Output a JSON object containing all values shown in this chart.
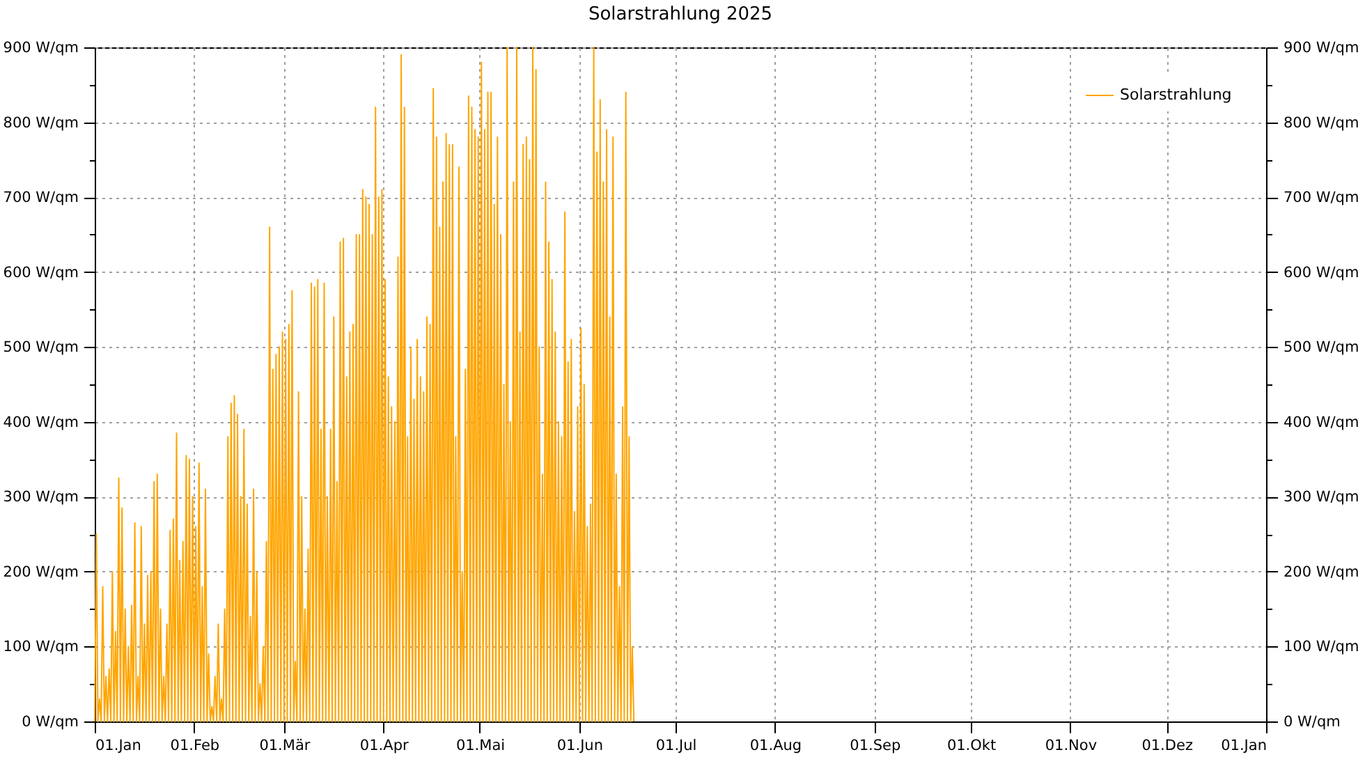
{
  "chart_data": {
    "type": "line",
    "title": "Solarstrahlung 2025",
    "legend": "top right",
    "grid": true,
    "xlim": [
      "2025-01-01",
      "2026-01-01"
    ],
    "xticks": [
      {
        "value": "2025-01-01",
        "label": "01.Jan"
      },
      {
        "value": "2025-02-01",
        "label": "01.Feb"
      },
      {
        "value": "2025-03-01",
        "label": "01.Mär"
      },
      {
        "value": "2025-04-01",
        "label": "01.Apr"
      },
      {
        "value": "2025-05-01",
        "label": "01.Mai"
      },
      {
        "value": "2025-06-01",
        "label": "01.Jun"
      },
      {
        "value": "2025-07-01",
        "label": "01.Jul"
      },
      {
        "value": "2025-08-01",
        "label": "01.Aug"
      },
      {
        "value": "2025-09-01",
        "label": "01.Sep"
      },
      {
        "value": "2025-10-01",
        "label": "01.Okt"
      },
      {
        "value": "2025-11-01",
        "label": "01.Nov"
      },
      {
        "value": "2025-12-01",
        "label": "01.Dez"
      },
      {
        "value": "2026-01-01",
        "label": "01.Jan"
      }
    ],
    "ylim": [
      0,
      900
    ],
    "yticks": [
      {
        "value": 0,
        "label": "0 W/qm"
      },
      {
        "value": 50,
        "label": null
      },
      {
        "value": 100,
        "label": "100 W/qm"
      },
      {
        "value": 150,
        "label": null
      },
      {
        "value": 200,
        "label": "200 W/qm"
      },
      {
        "value": 250,
        "label": null
      },
      {
        "value": 300,
        "label": "300 W/qm"
      },
      {
        "value": 350,
        "label": null
      },
      {
        "value": 400,
        "label": "400 W/qm"
      },
      {
        "value": 450,
        "label": null
      },
      {
        "value": 500,
        "label": "500 W/qm"
      },
      {
        "value": 550,
        "label": null
      },
      {
        "value": 600,
        "label": "600 W/qm"
      },
      {
        "value": 650,
        "label": null
      },
      {
        "value": 700,
        "label": "700 W/qm"
      },
      {
        "value": 750,
        "label": null
      },
      {
        "value": 800,
        "label": "800 W/qm"
      },
      {
        "value": 850,
        "label": null
      },
      {
        "value": 900,
        "label": "900 W/qm"
      }
    ],
    "y2lim": [
      0,
      900
    ],
    "y2ticks": [
      {
        "value": 0,
        "label": "0 W/qm"
      },
      {
        "value": 50,
        "label": null
      },
      {
        "value": 100,
        "label": "100 W/qm"
      },
      {
        "value": 150,
        "label": null
      },
      {
        "value": 200,
        "label": "200 W/qm"
      },
      {
        "value": 250,
        "label": null
      },
      {
        "value": 300,
        "label": "300 W/qm"
      },
      {
        "value": 350,
        "label": null
      },
      {
        "value": 400,
        "label": "400 W/qm"
      },
      {
        "value": 450,
        "label": null
      },
      {
        "value": 500,
        "label": "500 W/qm"
      },
      {
        "value": 550,
        "label": null
      },
      {
        "value": 600,
        "label": "600 W/qm"
      },
      {
        "value": 650,
        "label": null
      },
      {
        "value": 700,
        "label": "700 W/qm"
      },
      {
        "value": 750,
        "label": null
      },
      {
        "value": 800,
        "label": "800 W/qm"
      },
      {
        "value": 850,
        "label": null
      },
      {
        "value": 900,
        "label": "900 W/qm"
      }
    ],
    "x": [
      "2025-01-01T00:00",
      "2025-01-01T12:00",
      "2025-01-02T00:00",
      "2025-01-02T12:00",
      "2025-01-03T00:00",
      "2025-01-03T12:00",
      "2025-01-04T00:00",
      "2025-01-04T12:00",
      "2025-01-05T00:00",
      "2025-01-05T12:00",
      "2025-01-06T00:00",
      "2025-01-06T12:00",
      "2025-01-07T00:00",
      "2025-01-07T12:00",
      "2025-01-08T00:00",
      "2025-01-08T12:00",
      "2025-01-09T00:00",
      "2025-01-09T12:00",
      "2025-01-10T00:00",
      "2025-01-10T12:00",
      "2025-01-11T00:00",
      "2025-01-11T12:00",
      "2025-01-12T00:00",
      "2025-01-12T12:00",
      "2025-01-13T00:00",
      "2025-01-13T12:00",
      "2025-01-14T00:00",
      "2025-01-14T12:00",
      "2025-01-15T00:00",
      "2025-01-15T12:00",
      "2025-01-16T00:00",
      "2025-01-16T12:00",
      "2025-01-17T00:00",
      "2025-01-17T12:00",
      "2025-01-18T00:00",
      "2025-01-18T12:00",
      "2025-01-19T00:00",
      "2025-01-19T12:00",
      "2025-01-20T00:00",
      "2025-01-20T12:00",
      "2025-01-21T00:00",
      "2025-01-21T12:00",
      "2025-01-22T00:00",
      "2025-01-22T12:00",
      "2025-01-23T00:00",
      "2025-01-23T12:00",
      "2025-01-24T00:00",
      "2025-01-24T12:00",
      "2025-01-25T00:00",
      "2025-01-25T12:00",
      "2025-01-26T00:00",
      "2025-01-26T12:00",
      "2025-01-27T00:00",
      "2025-01-27T12:00",
      "2025-01-28T00:00",
      "2025-01-28T12:00",
      "2025-01-29T00:00",
      "2025-01-29T12:00",
      "2025-01-30T00:00",
      "2025-01-30T12:00",
      "2025-01-31T00:00",
      "2025-01-31T12:00",
      "2025-02-01T00:00",
      "2025-02-01T12:00",
      "2025-02-02T00:00",
      "2025-02-02T12:00",
      "2025-02-03T00:00",
      "2025-02-03T12:00",
      "2025-02-04T00:00",
      "2025-02-04T12:00",
      "2025-02-05T00:00",
      "2025-02-05T12:00",
      "2025-02-06T00:00",
      "2025-02-06T12:00",
      "2025-02-07T00:00",
      "2025-02-07T12:00",
      "2025-02-08T00:00",
      "2025-02-08T12:00",
      "2025-02-09T00:00",
      "2025-02-09T12:00",
      "2025-02-10T00:00",
      "2025-02-10T12:00",
      "2025-02-11T00:00",
      "2025-02-11T12:00",
      "2025-02-12T00:00",
      "2025-02-12T12:00",
      "2025-02-13T00:00",
      "2025-02-13T12:00",
      "2025-02-14T00:00",
      "2025-02-14T12:00",
      "2025-02-15T00:00",
      "2025-02-15T12:00",
      "2025-02-16T00:00",
      "2025-02-16T12:00",
      "2025-02-17T00:00",
      "2025-02-17T12:00",
      "2025-02-18T00:00",
      "2025-02-18T12:00",
      "2025-02-19T00:00",
      "2025-02-19T12:00",
      "2025-02-20T00:00",
      "2025-02-20T12:00",
      "2025-02-21T00:00",
      "2025-02-21T12:00",
      "2025-02-22T00:00",
      "2025-02-22T12:00",
      "2025-02-23T00:00",
      "2025-02-23T12:00",
      "2025-02-24T00:00",
      "2025-02-24T12:00",
      "2025-02-25T00:00",
      "2025-02-25T12:00",
      "2025-02-26T00:00",
      "2025-02-26T12:00",
      "2025-02-27T00:00",
      "2025-02-27T12:00",
      "2025-02-28T00:00",
      "2025-02-28T12:00",
      "2025-03-01T00:00",
      "2025-03-01T12:00",
      "2025-03-02T00:00",
      "2025-03-02T12:00",
      "2025-03-03T00:00",
      "2025-03-03T12:00",
      "2025-03-04T00:00",
      "2025-03-04T12:00",
      "2025-03-05T00:00",
      "2025-03-05T12:00",
      "2025-03-06T00:00",
      "2025-03-06T12:00",
      "2025-03-07T00:00",
      "2025-03-07T12:00",
      "2025-03-08T00:00",
      "2025-03-08T12:00",
      "2025-03-09T00:00",
      "2025-03-09T12:00",
      "2025-03-10T00:00",
      "2025-03-10T12:00",
      "2025-03-11T00:00",
      "2025-03-11T12:00",
      "2025-03-12T00:00",
      "2025-03-12T12:00",
      "2025-03-13T00:00",
      "2025-03-13T12:00",
      "2025-03-14T00:00",
      "2025-03-14T12:00",
      "2025-03-15T00:00",
      "2025-03-15T12:00",
      "2025-03-16T00:00",
      "2025-03-16T12:00",
      "2025-03-17T00:00",
      "2025-03-17T12:00",
      "2025-03-18T00:00",
      "2025-03-18T12:00",
      "2025-03-19T00:00",
      "2025-03-19T12:00",
      "2025-03-20T00:00",
      "2025-03-20T12:00",
      "2025-03-21T00:00",
      "2025-03-21T12:00",
      "2025-03-22T00:00",
      "2025-03-22T12:00",
      "2025-03-23T00:00",
      "2025-03-23T12:00",
      "2025-03-24T00:00",
      "2025-03-24T12:00",
      "2025-03-25T00:00",
      "2025-03-25T12:00",
      "2025-03-26T00:00",
      "2025-03-26T12:00",
      "2025-03-27T00:00",
      "2025-03-27T12:00",
      "2025-03-28T00:00",
      "2025-03-28T12:00",
      "2025-03-29T00:00",
      "2025-03-29T12:00",
      "2025-03-30T00:00",
      "2025-03-30T12:00",
      "2025-03-31T00:00",
      "2025-03-31T12:00",
      "2025-04-01T00:00",
      "2025-04-01T12:00",
      "2025-04-02T00:00",
      "2025-04-02T12:00",
      "2025-04-03T00:00",
      "2025-04-03T12:00",
      "2025-04-04T00:00",
      "2025-04-04T12:00",
      "2025-04-05T00:00",
      "2025-04-05T12:00",
      "2025-04-06T00:00",
      "2025-04-06T12:00",
      "2025-04-07T00:00",
      "2025-04-07T12:00",
      "2025-04-08T00:00",
      "2025-04-08T12:00",
      "2025-04-09T00:00",
      "2025-04-09T12:00",
      "2025-04-10T00:00",
      "2025-04-10T12:00",
      "2025-04-11T00:00",
      "2025-04-11T12:00",
      "2025-04-12T00:00",
      "2025-04-12T12:00",
      "2025-04-13T00:00",
      "2025-04-13T12:00",
      "2025-04-14T00:00",
      "2025-04-14T12:00",
      "2025-04-15T00:00",
      "2025-04-15T12:00",
      "2025-04-16T00:00",
      "2025-04-16T12:00",
      "2025-04-17T00:00",
      "2025-04-17T12:00",
      "2025-04-18T00:00",
      "2025-04-18T12:00",
      "2025-04-19T00:00",
      "2025-04-19T12:00",
      "2025-04-20T00:00",
      "2025-04-20T12:00",
      "2025-04-21T00:00",
      "2025-04-21T12:00",
      "2025-04-22T00:00",
      "2025-04-22T12:00",
      "2025-04-23T00:00",
      "2025-04-23T12:00",
      "2025-04-24T00:00",
      "2025-04-24T12:00",
      "2025-04-25T00:00",
      "2025-04-25T12:00",
      "2025-04-26T00:00",
      "2025-04-26T12:00",
      "2025-04-27T00:00",
      "2025-04-27T12:00",
      "2025-04-28T00:00",
      "2025-04-28T12:00",
      "2025-04-29T00:00",
      "2025-04-29T12:00",
      "2025-04-30T00:00",
      "2025-04-30T12:00",
      "2025-05-01T00:00",
      "2025-05-01T12:00",
      "2025-05-02T00:00",
      "2025-05-02T12:00",
      "2025-05-03T00:00",
      "2025-05-03T12:00",
      "2025-05-04T00:00",
      "2025-05-04T12:00",
      "2025-05-05T00:00",
      "2025-05-05T12:00",
      "2025-05-06T00:00",
      "2025-05-06T12:00",
      "2025-05-07T00:00",
      "2025-05-07T12:00",
      "2025-05-08T00:00",
      "2025-05-08T12:00",
      "2025-05-09T00:00",
      "2025-05-09T12:00",
      "2025-05-10T00:00",
      "2025-05-10T12:00",
      "2025-05-11T00:00",
      "2025-05-11T12:00",
      "2025-05-12T00:00",
      "2025-05-12T12:00",
      "2025-05-13T00:00",
      "2025-05-13T12:00",
      "2025-05-14T00:00",
      "2025-05-14T12:00",
      "2025-05-15T00:00",
      "2025-05-15T12:00",
      "2025-05-16T00:00",
      "2025-05-16T12:00",
      "2025-05-17T00:00",
      "2025-05-17T12:00",
      "2025-05-18T00:00",
      "2025-05-18T12:00",
      "2025-05-19T00:00",
      "2025-05-19T12:00",
      "2025-05-20T00:00",
      "2025-05-20T12:00",
      "2025-05-21T00:00",
      "2025-05-21T12:00",
      "2025-05-22T00:00",
      "2025-05-22T12:00",
      "2025-05-23T00:00",
      "2025-05-23T12:00",
      "2025-05-24T00:00",
      "2025-05-24T12:00",
      "2025-05-25T00:00",
      "2025-05-25T12:00",
      "2025-05-26T00:00",
      "2025-05-26T12:00",
      "2025-05-27T00:00",
      "2025-05-27T12:00",
      "2025-05-28T00:00",
      "2025-05-28T12:00",
      "2025-05-29T00:00",
      "2025-05-29T12:00",
      "2025-05-30T00:00",
      "2025-05-30T12:00",
      "2025-05-31T00:00",
      "2025-05-31T12:00",
      "2025-06-01T00:00",
      "2025-06-01T12:00",
      "2025-06-02T00:00",
      "2025-06-02T12:00",
      "2025-06-03T00:00",
      "2025-06-03T12:00",
      "2025-06-04T00:00",
      "2025-06-04T12:00",
      "2025-06-05T00:00",
      "2025-06-05T12:00",
      "2025-06-06T00:00",
      "2025-06-06T12:00",
      "2025-06-07T00:00",
      "2025-06-07T12:00",
      "2025-06-08T00:00",
      "2025-06-08T12:00",
      "2025-06-09T00:00",
      "2025-06-09T12:00",
      "2025-06-10T00:00",
      "2025-06-10T12:00",
      "2025-06-11T00:00",
      "2025-06-11T12:00",
      "2025-06-12T00:00",
      "2025-06-12T12:00",
      "2025-06-13T00:00",
      "2025-06-13T12:00",
      "2025-06-14T00:00",
      "2025-06-14T12:00",
      "2025-06-15T00:00",
      "2025-06-15T12:00",
      "2025-06-16T00:00",
      "2025-06-16T12:00",
      "2025-06-17T00:00",
      "2025-06-17T12:00",
      "2025-06-18T00:00"
    ],
    "series": [
      {
        "name": "Solarstrahlung",
        "color": "#ffa500",
        "values": [
          0,
          250,
          0,
          30,
          0,
          180,
          0,
          60,
          0,
          70,
          0,
          200,
          0,
          120,
          0,
          325,
          0,
          285,
          0,
          150,
          0,
          100,
          0,
          155,
          0,
          265,
          0,
          60,
          0,
          260,
          0,
          130,
          0,
          195,
          0,
          200,
          0,
          320,
          0,
          330,
          0,
          150,
          0,
          60,
          0,
          130,
          0,
          255,
          0,
          270,
          0,
          385,
          0,
          215,
          0,
          240,
          0,
          355,
          0,
          350,
          0,
          300,
          0,
          260,
          0,
          345,
          0,
          180,
          0,
          310,
          0,
          90,
          0,
          20,
          0,
          60,
          0,
          130,
          0,
          30,
          0,
          150,
          0,
          380,
          0,
          425,
          0,
          435,
          0,
          410,
          0,
          300,
          0,
          390,
          0,
          290,
          0,
          140,
          0,
          310,
          0,
          200,
          0,
          50,
          0,
          100,
          0,
          240,
          0,
          660,
          0,
          470,
          0,
          490,
          0,
          500,
          0,
          520,
          0,
          510,
          0,
          530,
          0,
          575,
          0,
          80,
          0,
          440,
          0,
          300,
          0,
          150,
          0,
          230,
          0,
          585,
          0,
          580,
          0,
          590,
          0,
          390,
          0,
          585,
          0,
          300,
          0,
          390,
          0,
          540,
          0,
          320,
          0,
          640,
          0,
          645,
          0,
          460,
          0,
          520,
          0,
          530,
          0,
          650,
          0,
          650,
          0,
          710,
          0,
          700,
          0,
          690,
          0,
          650,
          0,
          820,
          0,
          700,
          0,
          710,
          0,
          590,
          0,
          460,
          0,
          420,
          0,
          400,
          0,
          620,
          0,
          890,
          0,
          820,
          0,
          380,
          0,
          500,
          0,
          430,
          0,
          510,
          0,
          460,
          0,
          440,
          0,
          540,
          0,
          530,
          0,
          845,
          0,
          780,
          0,
          660,
          0,
          720,
          0,
          785,
          0,
          770,
          0,
          770,
          0,
          380,
          0,
          740,
          0,
          200,
          0,
          470,
          0,
          835,
          0,
          820,
          0,
          790,
          0,
          780,
          0,
          880,
          0,
          790,
          0,
          840,
          0,
          840,
          0,
          690,
          0,
          780,
          0,
          650,
          0,
          450,
          0,
          900,
          0,
          400,
          0,
          720,
          0,
          900,
          0,
          520,
          0,
          770,
          0,
          780,
          0,
          750,
          0,
          900,
          0,
          870,
          0,
          500,
          0,
          330,
          0,
          720,
          0,
          640,
          0,
          590,
          0,
          520,
          0,
          400,
          0,
          380,
          0,
          680,
          0,
          480,
          0,
          510,
          0,
          280,
          0,
          420,
          0,
          525,
          0,
          450,
          0,
          260,
          0,
          290,
          0,
          900,
          0,
          760,
          0,
          830,
          0,
          720,
          0,
          790,
          0,
          540,
          0,
          780,
          0,
          330,
          0,
          180,
          0,
          420,
          0,
          840,
          0,
          380,
          0,
          100,
          0
        ]
      }
    ]
  }
}
